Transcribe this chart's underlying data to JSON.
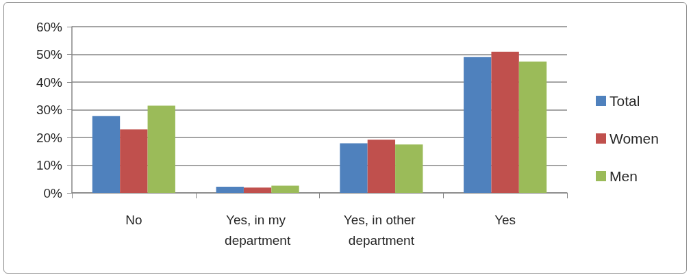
{
  "chart_data": {
    "type": "bar",
    "categories": [
      "No",
      "Yes, in my department",
      "Yes, in other department",
      "Yes"
    ],
    "series": [
      {
        "name": "Total",
        "color": "#4f81bd",
        "values": [
          27.7,
          2.2,
          17.9,
          49.1
        ]
      },
      {
        "name": "Women",
        "color": "#c0504d",
        "values": [
          22.9,
          1.9,
          19.2,
          50.9
        ]
      },
      {
        "name": "Men",
        "color": "#9bbb59",
        "values": [
          31.5,
          2.6,
          17.5,
          47.4
        ]
      }
    ],
    "ylim": [
      0,
      60
    ],
    "yticks": [
      {
        "value": 0,
        "label": "0%"
      },
      {
        "value": 10,
        "label": "10%"
      },
      {
        "value": 20,
        "label": "20%"
      },
      {
        "value": 30,
        "label": "30%"
      },
      {
        "value": 40,
        "label": "40%"
      },
      {
        "value": 50,
        "label": "50%"
      },
      {
        "value": 60,
        "label": "60%"
      }
    ],
    "grid": "y",
    "legend": "right"
  }
}
